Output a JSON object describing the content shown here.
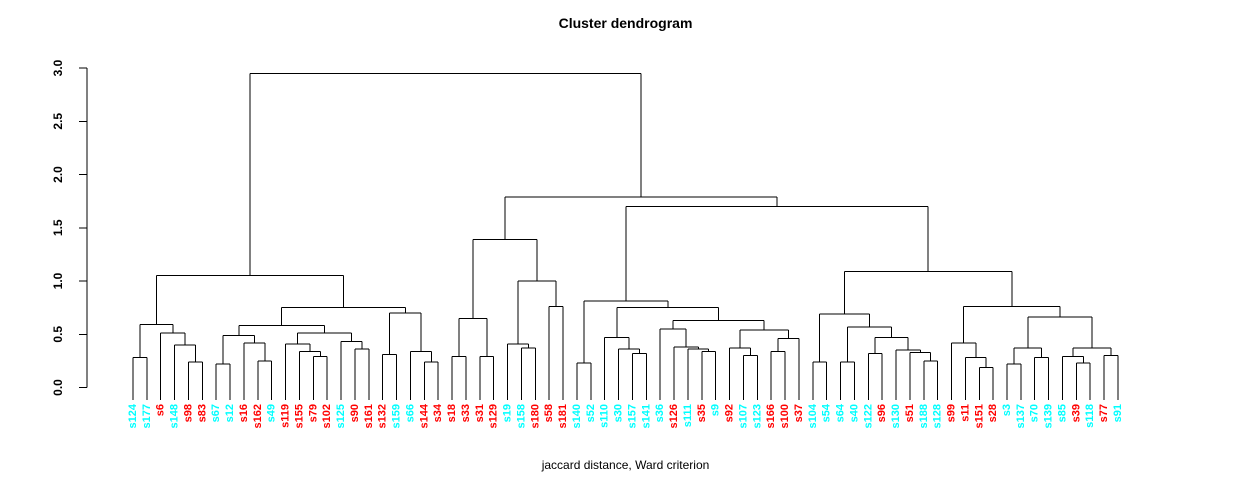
{
  "title": "Cluster dendrogram",
  "xlab": "jaccard distance, Ward criterion",
  "colors": {
    "red_label": "#FF0000",
    "cyan_label": "#00FFFF",
    "line": "#000000",
    "text": "#000000",
    "background": "#FFFFFF"
  },
  "y_axis": {
    "ticks": [
      "0.0",
      "0.5",
      "1.0",
      "1.5",
      "2.0",
      "2.5",
      "3.0"
    ],
    "min": 0,
    "max": 3
  },
  "chart_data": {
    "type": "dendrogram",
    "title": "Cluster dendrogram",
    "xlabel": "jaccard distance, Ward criterion",
    "ylabel": "",
    "ylim": [
      0,
      3
    ],
    "yticks": [
      0,
      0.5,
      1,
      1.5,
      2,
      2.5,
      3
    ],
    "grid": false,
    "legend": "none",
    "leaf_color_legend": {
      "r": "#FF0000",
      "c": "#00FFFF"
    },
    "leaves": [
      {
        "t": "s124",
        "c": "c"
      },
      {
        "t": "s177",
        "c": "c"
      },
      {
        "t": "s6",
        "c": "r"
      },
      {
        "t": "s148",
        "c": "c"
      },
      {
        "t": "s98",
        "c": "r"
      },
      {
        "t": "s83",
        "c": "r"
      },
      {
        "t": "s67",
        "c": "c"
      },
      {
        "t": "s12",
        "c": "c"
      },
      {
        "t": "s16",
        "c": "r"
      },
      {
        "t": "s162",
        "c": "r"
      },
      {
        "t": "s49",
        "c": "c"
      },
      {
        "t": "s119",
        "c": "r"
      },
      {
        "t": "s155",
        "c": "r"
      },
      {
        "t": "s79",
        "c": "r"
      },
      {
        "t": "s102",
        "c": "r"
      },
      {
        "t": "s125",
        "c": "c"
      },
      {
        "t": "s90",
        "c": "r"
      },
      {
        "t": "s161",
        "c": "r"
      },
      {
        "t": "s132",
        "c": "r"
      },
      {
        "t": "s159",
        "c": "c"
      },
      {
        "t": "s66",
        "c": "c"
      },
      {
        "t": "s144",
        "c": "r"
      },
      {
        "t": "s34",
        "c": "r"
      },
      {
        "t": "s18",
        "c": "r"
      },
      {
        "t": "s33",
        "c": "r"
      },
      {
        "t": "s31",
        "c": "r"
      },
      {
        "t": "s129",
        "c": "r"
      },
      {
        "t": "s19",
        "c": "c"
      },
      {
        "t": "s158",
        "c": "c"
      },
      {
        "t": "s180",
        "c": "r"
      },
      {
        "t": "s58",
        "c": "r"
      },
      {
        "t": "s181",
        "c": "r"
      },
      {
        "t": "s140",
        "c": "c"
      },
      {
        "t": "s52",
        "c": "c"
      },
      {
        "t": "s110",
        "c": "c"
      },
      {
        "t": "s30",
        "c": "c"
      },
      {
        "t": "s157",
        "c": "c"
      },
      {
        "t": "s141",
        "c": "c"
      },
      {
        "t": "s36",
        "c": "c"
      },
      {
        "t": "s126",
        "c": "r"
      },
      {
        "t": "s111",
        "c": "c"
      },
      {
        "t": "s35",
        "c": "r"
      },
      {
        "t": "s9",
        "c": "c"
      },
      {
        "t": "s92",
        "c": "r"
      },
      {
        "t": "s107",
        "c": "c"
      },
      {
        "t": "s123",
        "c": "c"
      },
      {
        "t": "s166",
        "c": "r"
      },
      {
        "t": "s100",
        "c": "r"
      },
      {
        "t": "s37",
        "c": "r"
      },
      {
        "t": "s104",
        "c": "c"
      },
      {
        "t": "s54",
        "c": "c"
      },
      {
        "t": "s64",
        "c": "c"
      },
      {
        "t": "s40",
        "c": "c"
      },
      {
        "t": "s122",
        "c": "c"
      },
      {
        "t": "s96",
        "c": "r"
      },
      {
        "t": "s130",
        "c": "c"
      },
      {
        "t": "s51",
        "c": "r"
      },
      {
        "t": "s188",
        "c": "c"
      },
      {
        "t": "s128",
        "c": "c"
      },
      {
        "t": "s99",
        "c": "r"
      },
      {
        "t": "s11",
        "c": "r"
      },
      {
        "t": "s151",
        "c": "r"
      },
      {
        "t": "s28",
        "c": "r"
      },
      {
        "t": "s3",
        "c": "c"
      },
      {
        "t": "s137",
        "c": "c"
      },
      {
        "t": "s70",
        "c": "c"
      },
      {
        "t": "s139",
        "c": "c"
      },
      {
        "t": "s85",
        "c": "c"
      },
      {
        "t": "s39",
        "c": "r"
      },
      {
        "t": "s118",
        "c": "c"
      },
      {
        "t": "s77",
        "c": "r"
      },
      {
        "t": "s91",
        "c": "c"
      }
    ],
    "tree": {
      "h": 2.95,
      "c": [
        {
          "h": 1.05,
          "c": [
            {
              "h": 0.59,
              "c": [
                {
                  "h": 0.28,
                  "c": [
                    0,
                    1
                  ]
                },
                {
                  "h": 0.51,
                  "c": [
                    2,
                    {
                      "h": 0.4,
                      "c": [
                        3,
                        {
                          "h": 0.24,
                          "c": [
                            4,
                            5
                          ]
                        }
                      ]
                    }
                  ]
                }
              ]
            },
            {
              "h": 0.75,
              "c": [
                {
                  "h": 0.58,
                  "c": [
                    {
                      "h": 0.49,
                      "c": [
                        {
                          "h": 0.22,
                          "c": [
                            6,
                            7
                          ]
                        },
                        {
                          "h": 0.42,
                          "c": [
                            8,
                            {
                              "h": 0.25,
                              "c": [
                                9,
                                10
                              ]
                            }
                          ]
                        }
                      ]
                    },
                    {
                      "h": 0.51,
                      "c": [
                        {
                          "h": 0.41,
                          "c": [
                            11,
                            {
                              "h": 0.34,
                              "c": [
                                12,
                                {
                                  "h": 0.29,
                                  "c": [
                                    13,
                                    14
                                  ]
                                }
                              ]
                            }
                          ]
                        },
                        {
                          "h": 0.43,
                          "c": [
                            15,
                            {
                              "h": 0.36,
                              "c": [
                                16,
                                17
                              ]
                            }
                          ]
                        }
                      ]
                    }
                  ]
                },
                {
                  "h": 0.7,
                  "c": [
                    {
                      "h": 0.31,
                      "c": [
                        18,
                        19
                      ]
                    },
                    {
                      "h": 0.34,
                      "c": [
                        20,
                        {
                          "h": 0.24,
                          "c": [
                            21,
                            22
                          ]
                        }
                      ]
                    }
                  ]
                }
              ]
            }
          ]
        },
        {
          "h": 1.79,
          "c": [
            {
              "h": 1.39,
              "c": [
                {
                  "h": 0.65,
                  "c": [
                    {
                      "h": 0.29,
                      "c": [
                        23,
                        24
                      ]
                    },
                    {
                      "h": 0.29,
                      "c": [
                        25,
                        26
                      ]
                    }
                  ]
                },
                {
                  "h": 1.0,
                  "c": [
                    {
                      "h": 0.41,
                      "c": [
                        27,
                        {
                          "h": 0.37,
                          "c": [
                            28,
                            29
                          ]
                        }
                      ]
                    },
                    {
                      "h": 0.76,
                      "c": [
                        30,
                        31
                      ]
                    }
                  ]
                }
              ]
            },
            {
              "h": 1.7,
              "c": [
                {
                  "h": 0.81,
                  "c": [
                    {
                      "h": 0.23,
                      "c": [
                        32,
                        33
                      ]
                    },
                    {
                      "h": 0.75,
                      "c": [
                        {
                          "h": 0.47,
                          "c": [
                            34,
                            {
                              "h": 0.36,
                              "c": [
                                35,
                                {
                                  "h": 0.32,
                                  "c": [
                                    36,
                                    37
                                  ]
                                }
                              ]
                            }
                          ]
                        },
                        {
                          "h": 0.63,
                          "c": [
                            {
                              "h": 0.55,
                              "c": [
                                38,
                                {
                                  "h": 0.38,
                                  "c": [
                                    39,
                                    {
                                      "h": 0.36,
                                      "c": [
                                        40,
                                        {
                                          "h": 0.34,
                                          "c": [
                                            41,
                                            42
                                          ]
                                        }
                                      ]
                                    }
                                  ]
                                }
                              ]
                            },
                            {
                              "h": 0.54,
                              "c": [
                                {
                                  "h": 0.37,
                                  "c": [
                                    43,
                                    {
                                      "h": 0.3,
                                      "c": [
                                        44,
                                        45
                                      ]
                                    }
                                  ]
                                },
                                {
                                  "h": 0.46,
                                  "c": [
                                    {
                                      "h": 0.34,
                                      "c": [
                                        46,
                                        47
                                      ]
                                    },
                                    48
                                  ]
                                }
                              ]
                            }
                          ]
                        }
                      ]
                    }
                  ]
                },
                {
                  "h": 1.09,
                  "c": [
                    {
                      "h": 0.69,
                      "c": [
                        {
                          "h": 0.24,
                          "c": [
                            49,
                            50
                          ]
                        },
                        {
                          "h": 0.57,
                          "c": [
                            {
                              "h": 0.24,
                              "c": [
                                51,
                                52
                              ]
                            },
                            {
                              "h": 0.47,
                              "c": [
                                {
                                  "h": 0.32,
                                  "c": [
                                    53,
                                    54
                                  ]
                                },
                                {
                                  "h": 0.35,
                                  "c": [
                                    55,
                                    {
                                      "h": 0.33,
                                      "c": [
                                        56,
                                        {
                                          "h": 0.25,
                                          "c": [
                                            57,
                                            58
                                          ]
                                        }
                                      ]
                                    }
                                  ]
                                }
                              ]
                            }
                          ]
                        }
                      ]
                    },
                    {
                      "h": 0.76,
                      "c": [
                        {
                          "h": 0.42,
                          "c": [
                            59,
                            {
                              "h": 0.28,
                              "c": [
                                60,
                                {
                                  "h": 0.19,
                                  "c": [
                                    61,
                                    62
                                  ]
                                }
                              ]
                            }
                          ]
                        },
                        {
                          "h": 0.66,
                          "c": [
                            {
                              "h": 0.37,
                              "c": [
                                {
                                  "h": 0.22,
                                  "c": [
                                    63,
                                    64
                                  ]
                                },
                                {
                                  "h": 0.28,
                                  "c": [
                                    65,
                                    66
                                  ]
                                }
                              ]
                            },
                            {
                              "h": 0.37,
                              "c": [
                                {
                                  "h": 0.29,
                                  "c": [
                                    67,
                                    {
                                      "h": 0.23,
                                      "c": [
                                        68,
                                        69
                                      ]
                                    }
                                  ]
                                },
                                {
                                  "h": 0.3,
                                  "c": [
                                    70,
                                    71
                                  ]
                                }
                              ]
                            }
                          ]
                        }
                      ]
                    }
                  ]
                }
              ]
            }
          ]
        }
      ]
    }
  }
}
